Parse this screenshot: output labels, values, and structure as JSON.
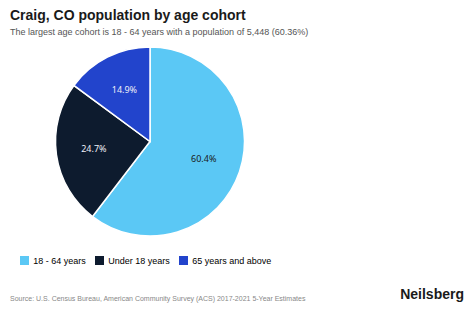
{
  "chart_data": {
    "type": "pie",
    "title": "Craig, CO population by age cohort",
    "subtitle": "The largest age cohort is 18 - 64 years with a population of 5,448 (60.36%)",
    "categories": [
      "18 - 64 years",
      "Under 18 years",
      "65 years and above"
    ],
    "values": [
      60.4,
      24.7,
      14.9
    ],
    "value_labels": [
      "60.4%",
      "24.7%",
      "14.9%"
    ],
    "data_labels": true,
    "colors": [
      "#5bc8f5",
      "#0d1b2e",
      "#2244cc"
    ],
    "legend": "bottom",
    "annotations": [
      "Source: U.S. Census Bureau, American Community Survey (ACS) 2017-2021 5-Year Estimates",
      "Neilsberg"
    ]
  }
}
